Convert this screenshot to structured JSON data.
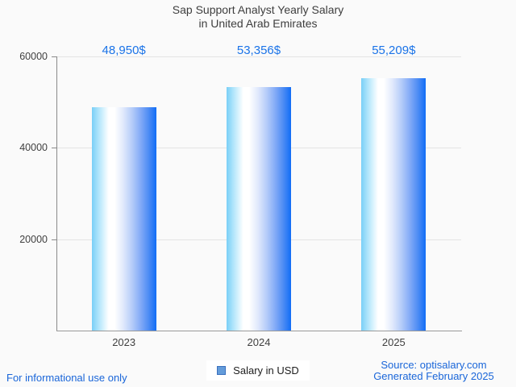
{
  "title": {
    "line1": "Sap Support Analyst Yearly Salary",
    "line2": "in United Arab Emirates"
  },
  "chart_data": {
    "type": "bar",
    "title": "Sap Support Analyst Yearly Salary in United Arab Emirates",
    "categories": [
      "2023",
      "2024",
      "2025"
    ],
    "values": [
      48950,
      53356,
      55209
    ],
    "value_labels": [
      "48,950$",
      "53,356$",
      "55,209$"
    ],
    "xlabel": "",
    "ylabel": "",
    "ylim": [
      0,
      60000
    ],
    "yticks": [
      20000,
      40000,
      60000
    ],
    "ytick_labels": [
      "20000",
      "40000",
      "60000"
    ],
    "grid": true,
    "legend_position": "bottom-center",
    "legend_label": "Salary in USD"
  },
  "legend": {
    "label": "Salary in USD"
  },
  "footer": {
    "left": "For informational use only",
    "source": "Source: optisalary.com",
    "generated": "Generated February 2025"
  },
  "colors": {
    "background": "#FAFAFA",
    "title_text": "#3E3E3E",
    "value_label_text": "#1A73E8",
    "footer_text": "#1A66D9",
    "bar_gradient_left": "#79CFF7",
    "bar_gradient_middle": "#FFFFFF",
    "bar_gradient_right": "#116DF6",
    "legend_marker_fill": "#649CDA",
    "legend_marker_border": "#3A70BE",
    "axis_line": "#8A8A8A",
    "grid_line": "#E4E4E4"
  }
}
